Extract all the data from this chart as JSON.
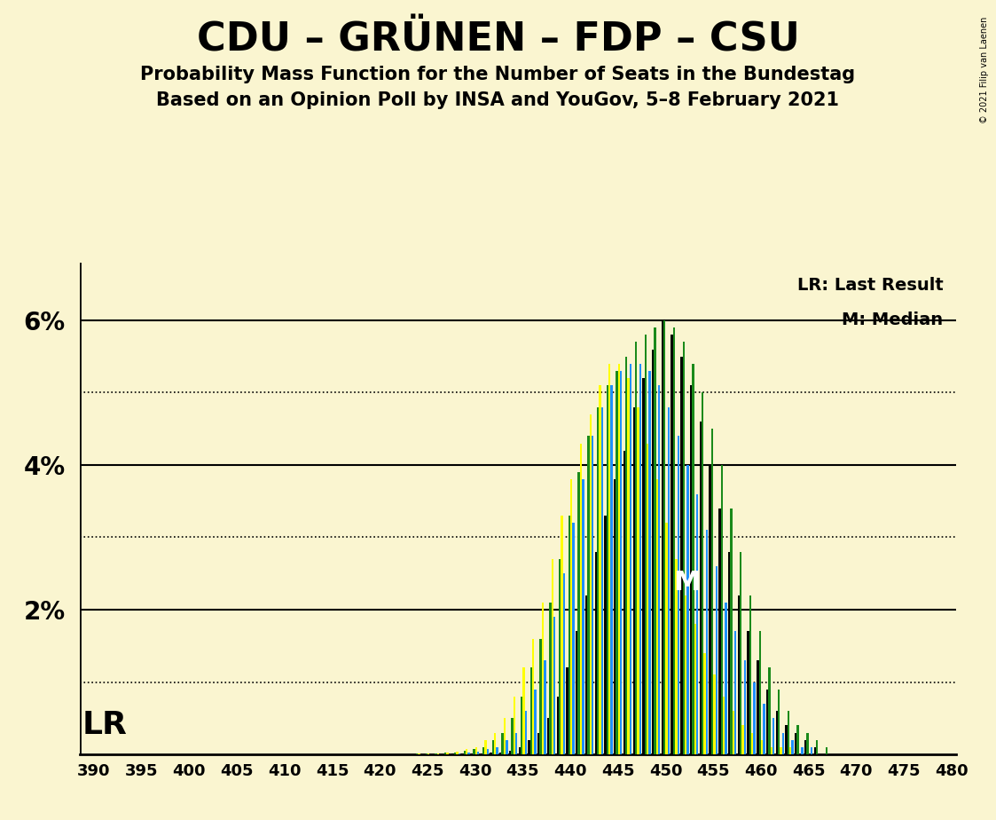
{
  "title": "CDU – GRÜNEN – FDP – CSU",
  "subtitle1": "Probability Mass Function for the Number of Seats in the Bundestag",
  "subtitle2": "Based on an Opinion Poll by INSA and YouGov, 5–8 February 2021",
  "copyright": "© 2021 Filip van Laenen",
  "background_color": "#FAF5D0",
  "bar_colors": [
    "#000000",
    "#1A8A1A",
    "#FFFF00",
    "#1E90FF"
  ],
  "legend_lr": "LR: Last Result",
  "legend_m": "M: Median",
  "lr_label": "LR",
  "m_label": "M",
  "lr_seat": 462,
  "m_seat": 452,
  "xmin": 390,
  "xmax": 480,
  "ymax": 0.068,
  "yticks": [
    0.0,
    0.02,
    0.04,
    0.06
  ],
  "ytick_labels": [
    "",
    "2%",
    "4%",
    "6%"
  ],
  "dotted_lines": [
    0.01,
    0.03,
    0.05
  ],
  "solid_lines": [
    0.02,
    0.04,
    0.06
  ],
  "seats": [
    390,
    391,
    392,
    393,
    394,
    395,
    396,
    397,
    398,
    399,
    400,
    401,
    402,
    403,
    404,
    405,
    406,
    407,
    408,
    409,
    410,
    411,
    412,
    413,
    414,
    415,
    416,
    417,
    418,
    419,
    420,
    421,
    422,
    423,
    424,
    425,
    426,
    427,
    428,
    429,
    430,
    431,
    432,
    433,
    434,
    435,
    436,
    437,
    438,
    439,
    440,
    441,
    442,
    443,
    444,
    445,
    446,
    447,
    448,
    449,
    450,
    451,
    452,
    453,
    454,
    455,
    456,
    457,
    458,
    459,
    460,
    461,
    462,
    463,
    464,
    465,
    466,
    467,
    468,
    469,
    470,
    471,
    472,
    473,
    474,
    475,
    476,
    477,
    478,
    479,
    480
  ],
  "pmf_black": [
    0.0,
    0.0,
    0.0,
    0.0,
    0.0,
    0.0,
    0.0,
    0.0,
    0.0,
    0.0,
    0.0,
    0.0,
    0.0,
    0.0,
    0.0,
    0.0,
    0.0,
    0.0,
    0.0,
    0.0,
    0.0,
    0.0,
    0.0,
    0.0,
    0.0,
    0.0,
    0.0,
    0.0,
    0.0,
    0.0,
    0.0,
    0.0,
    0.0,
    0.0,
    0.0,
    0.0,
    0.0,
    0.0,
    0.0001,
    0.0001,
    0.0001,
    0.0001,
    0.0002,
    0.0003,
    0.0005,
    0.001,
    0.002,
    0.003,
    0.005,
    0.008,
    0.012,
    0.017,
    0.022,
    0.028,
    0.033,
    0.038,
    0.042,
    0.048,
    0.052,
    0.056,
    0.06,
    0.058,
    0.055,
    0.051,
    0.046,
    0.04,
    0.034,
    0.028,
    0.022,
    0.017,
    0.013,
    0.009,
    0.006,
    0.004,
    0.003,
    0.002,
    0.001,
    0.0,
    0.0,
    0.0,
    0.0,
    0.0,
    0.0,
    0.0,
    0.0,
    0.0,
    0.0,
    0.0,
    0.0,
    0.0,
    0.0
  ],
  "pmf_green": [
    0.0,
    0.0,
    0.0,
    0.0,
    0.0,
    0.0,
    0.0,
    0.0,
    0.0,
    0.0,
    0.0,
    0.0,
    0.0,
    0.0,
    0.0,
    0.0,
    0.0,
    0.0,
    0.0,
    0.0,
    0.0,
    0.0,
    0.0,
    0.0,
    0.0,
    0.0,
    0.0,
    0.0,
    0.0,
    0.0,
    0.0,
    0.0,
    0.0,
    0.0,
    0.0001,
    0.0001,
    0.0001,
    0.0002,
    0.0003,
    0.0005,
    0.0008,
    0.001,
    0.002,
    0.003,
    0.005,
    0.008,
    0.012,
    0.016,
    0.021,
    0.027,
    0.033,
    0.039,
    0.044,
    0.048,
    0.051,
    0.053,
    0.055,
    0.057,
    0.058,
    0.059,
    0.06,
    0.059,
    0.057,
    0.054,
    0.05,
    0.045,
    0.04,
    0.034,
    0.028,
    0.022,
    0.017,
    0.012,
    0.009,
    0.006,
    0.004,
    0.003,
    0.002,
    0.001,
    0.0,
    0.0,
    0.0,
    0.0,
    0.0,
    0.0,
    0.0,
    0.0,
    0.0,
    0.0,
    0.0,
    0.0,
    0.0
  ],
  "pmf_yellow": [
    0.0,
    0.0,
    0.0,
    0.0,
    0.0,
    0.0,
    0.0,
    0.0,
    0.0,
    0.0,
    0.0,
    0.0,
    0.0,
    0.0,
    0.0,
    0.0,
    0.0,
    0.0,
    0.0,
    0.0,
    0.0,
    0.0,
    0.0,
    0.0,
    0.0,
    0.0,
    0.0,
    0.0,
    0.0,
    0.0,
    0.0,
    0.0,
    0.0,
    0.0,
    0.0001,
    0.0001,
    0.0001,
    0.0002,
    0.0004,
    0.0007,
    0.001,
    0.002,
    0.003,
    0.005,
    0.008,
    0.012,
    0.016,
    0.021,
    0.027,
    0.033,
    0.038,
    0.043,
    0.047,
    0.051,
    0.054,
    0.054,
    0.052,
    0.048,
    0.043,
    0.038,
    0.032,
    0.027,
    0.022,
    0.018,
    0.014,
    0.011,
    0.008,
    0.006,
    0.004,
    0.003,
    0.002,
    0.001,
    0.001,
    0.001,
    0.0,
    0.0,
    0.0,
    0.0,
    0.0,
    0.0,
    0.0,
    0.0,
    0.0,
    0.0,
    0.0,
    0.0,
    0.0,
    0.0,
    0.0,
    0.0,
    0.0
  ],
  "pmf_blue": [
    0.0,
    0.0,
    0.0,
    0.0,
    0.0,
    0.0,
    0.0,
    0.0,
    0.0,
    0.0,
    0.0,
    0.0,
    0.0,
    0.0,
    0.0,
    0.0,
    0.0,
    0.0,
    0.0,
    0.0,
    0.0,
    0.0,
    0.0,
    0.0,
    0.0,
    0.0,
    0.0,
    0.0,
    0.0,
    0.0,
    0.0,
    0.0,
    0.0,
    0.0,
    0.0,
    0.0,
    0.0,
    0.0,
    0.0001,
    0.0002,
    0.0004,
    0.0007,
    0.001,
    0.002,
    0.003,
    0.006,
    0.009,
    0.013,
    0.019,
    0.025,
    0.032,
    0.038,
    0.044,
    0.048,
    0.051,
    0.053,
    0.054,
    0.054,
    0.053,
    0.051,
    0.048,
    0.044,
    0.04,
    0.036,
    0.031,
    0.026,
    0.021,
    0.017,
    0.013,
    0.01,
    0.007,
    0.005,
    0.003,
    0.002,
    0.001,
    0.001,
    0.0,
    0.0,
    0.0,
    0.0,
    0.0,
    0.0,
    0.0,
    0.0,
    0.0,
    0.0,
    0.0,
    0.0,
    0.0,
    0.0,
    0.0
  ]
}
